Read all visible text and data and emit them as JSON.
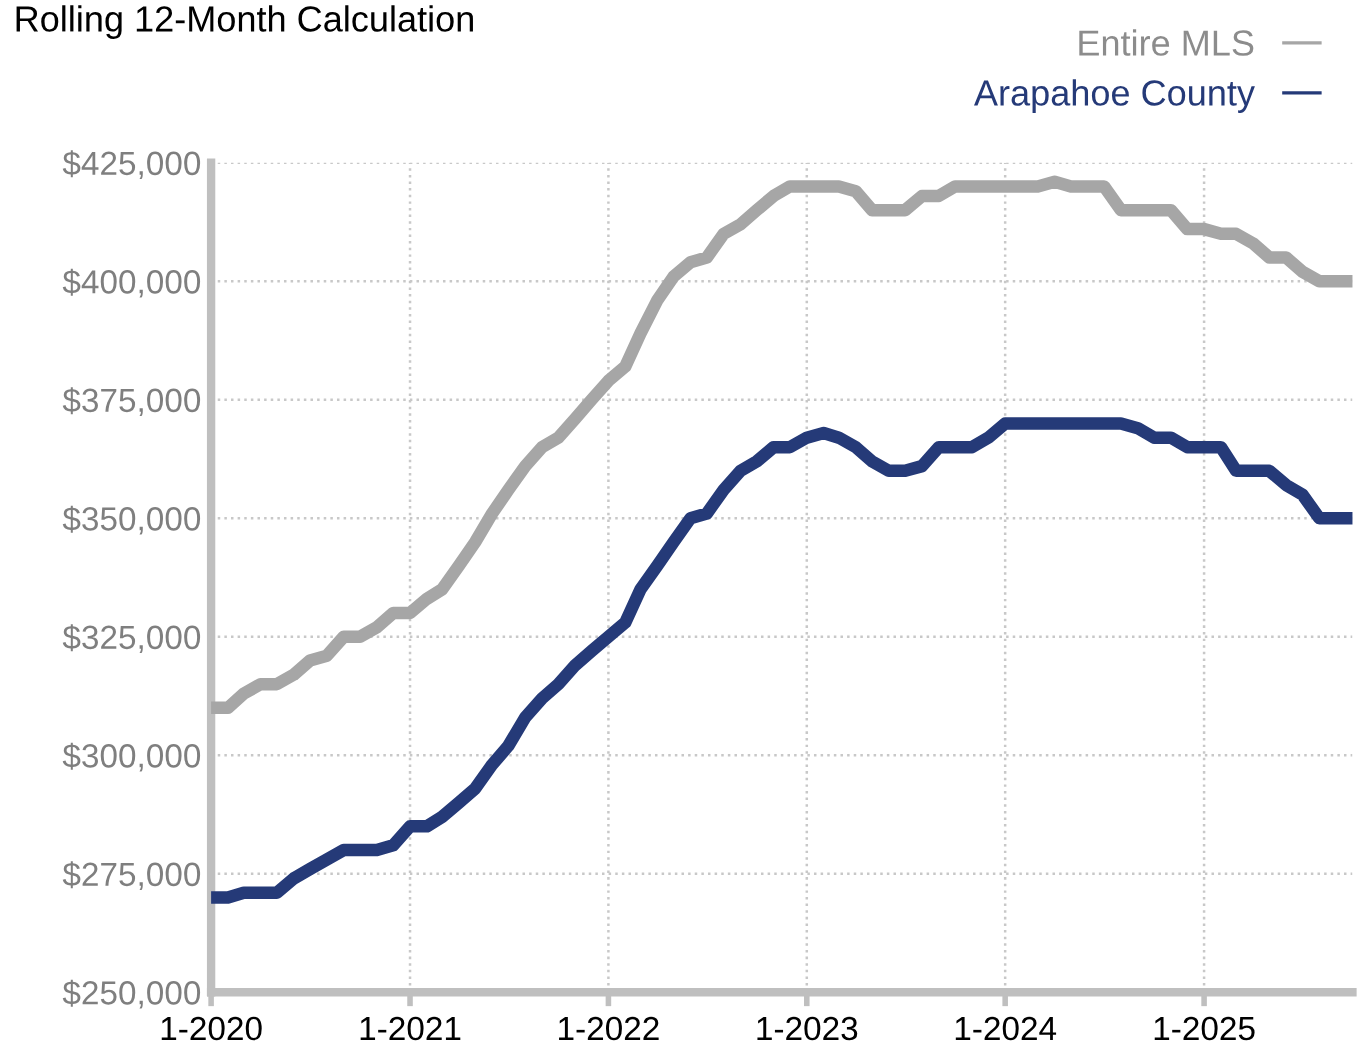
{
  "chart_data": {
    "type": "line",
    "title": "Rolling 12-Month Calculation",
    "xlim": [
      "2020-01",
      "2025-10"
    ],
    "xticks": [
      {
        "value": "2020-01",
        "label": "1-2020"
      },
      {
        "value": "2021-01",
        "label": "1-2021"
      },
      {
        "value": "2022-01",
        "label": "1-2022"
      },
      {
        "value": "2023-01",
        "label": "1-2023"
      },
      {
        "value": "2024-01",
        "label": "1-2024"
      },
      {
        "value": "2025-01",
        "label": "1-2025"
      }
    ],
    "ylim": [
      250000,
      425000
    ],
    "yticks": [
      {
        "value": 250000,
        "label": "$250,000"
      },
      {
        "value": 275000,
        "label": "$275,000"
      },
      {
        "value": 300000,
        "label": "$300,000"
      },
      {
        "value": 325000,
        "label": "$325,000"
      },
      {
        "value": 350000,
        "label": "$350,000"
      },
      {
        "value": 375000,
        "label": "$375,000"
      },
      {
        "value": 400000,
        "label": "$400,000"
      },
      {
        "value": 425000,
        "label": "$425,000"
      }
    ],
    "x": [
      "2020-01",
      "2020-02",
      "2020-03",
      "2020-04",
      "2020-05",
      "2020-06",
      "2020-07",
      "2020-08",
      "2020-09",
      "2020-10",
      "2020-11",
      "2020-12",
      "2021-01",
      "2021-02",
      "2021-03",
      "2021-04",
      "2021-05",
      "2021-06",
      "2021-07",
      "2021-08",
      "2021-09",
      "2021-10",
      "2021-11",
      "2021-12",
      "2022-01",
      "2022-02",
      "2022-03",
      "2022-04",
      "2022-05",
      "2022-06",
      "2022-07",
      "2022-08",
      "2022-09",
      "2022-10",
      "2022-11",
      "2022-12",
      "2023-01",
      "2023-02",
      "2023-03",
      "2023-04",
      "2023-05",
      "2023-06",
      "2023-07",
      "2023-08",
      "2023-09",
      "2023-10",
      "2023-11",
      "2023-12",
      "2024-01",
      "2024-02",
      "2024-03",
      "2024-04",
      "2024-05",
      "2024-06",
      "2024-07",
      "2024-08",
      "2024-09",
      "2024-10",
      "2024-11",
      "2024-12",
      "2025-01",
      "2025-02",
      "2025-03",
      "2025-04",
      "2025-05",
      "2025-06",
      "2025-07",
      "2025-08",
      "2025-09",
      "2025-10"
    ],
    "grid": true,
    "legend": "top right",
    "marker": "none",
    "line_style": "solid",
    "series": [
      {
        "name": "Entire MLS",
        "color": "#a6a6a6",
        "values": [
          310000,
          310000,
          313000,
          315000,
          315000,
          317000,
          320000,
          321000,
          325000,
          325000,
          327000,
          330000,
          330000,
          333000,
          335000,
          340000,
          345000,
          351000,
          356000,
          361000,
          365000,
          367000,
          371000,
          375000,
          379000,
          382000,
          389000,
          396000,
          401000,
          404000,
          405000,
          410000,
          412000,
          415000,
          418000,
          420000,
          420000,
          420000,
          420000,
          419000,
          415000,
          415000,
          415000,
          418000,
          418000,
          420000,
          420000,
          420000,
          420000,
          420000,
          420000,
          421000,
          420000,
          420000,
          420000,
          415000,
          415000,
          415000,
          415000,
          411000,
          411000,
          410000,
          410000,
          408000,
          405000,
          405000,
          402000,
          400000,
          400000,
          400000
        ]
      },
      {
        "name": "Arapahoe County",
        "color": "#253a78",
        "values": [
          270000,
          270000,
          271000,
          271000,
          271000,
          274000,
          276000,
          278000,
          280000,
          280000,
          280000,
          281000,
          285000,
          285000,
          287000,
          290000,
          293000,
          298000,
          302000,
          308000,
          312000,
          315000,
          319000,
          322000,
          325000,
          328000,
          335000,
          340000,
          345000,
          350000,
          351000,
          356000,
          360000,
          362000,
          365000,
          365000,
          367000,
          368000,
          367000,
          365000,
          362000,
          360000,
          360000,
          361000,
          365000,
          365000,
          365000,
          367000,
          370000,
          370000,
          370000,
          370000,
          370000,
          370000,
          370000,
          370000,
          369000,
          367000,
          367000,
          365000,
          365000,
          365000,
          360000,
          360000,
          360000,
          357000,
          355000,
          350000,
          350000,
          350000
        ]
      }
    ]
  }
}
